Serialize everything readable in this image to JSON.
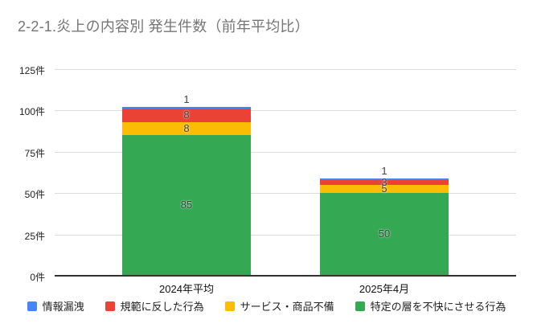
{
  "chart_data": {
    "type": "bar",
    "stacked": true,
    "title": "2-2-1.炎上の内容別 発生件数（前年平均比）",
    "categories": [
      "2024年平均",
      "2025年4月"
    ],
    "series": [
      {
        "name": "情報漏洩",
        "color": "#4285F4",
        "values": [
          1,
          1
        ]
      },
      {
        "name": "規範に反した行為",
        "color": "#EA4335",
        "values": [
          8,
          3
        ]
      },
      {
        "name": "サービス・商品不備",
        "color": "#FBBC04",
        "values": [
          8,
          5
        ]
      },
      {
        "name": "特定の層を不快にさせる行為",
        "color": "#34A853",
        "values": [
          85,
          50
        ]
      }
    ],
    "totals": [
      102,
      59
    ],
    "xlabel": "",
    "ylabel": "",
    "ylim": [
      0,
      125
    ],
    "yticks": [
      0,
      25,
      50,
      75,
      100,
      125
    ],
    "ytick_suffix": "件",
    "grid": true,
    "legend_position": "bottom",
    "value_labels_shown": true
  },
  "style_colors": {
    "title_gray": "#757575",
    "gridline": "#dadce0",
    "axis_line": "#333333",
    "value_label": "#424242",
    "background": "#ffffff"
  }
}
